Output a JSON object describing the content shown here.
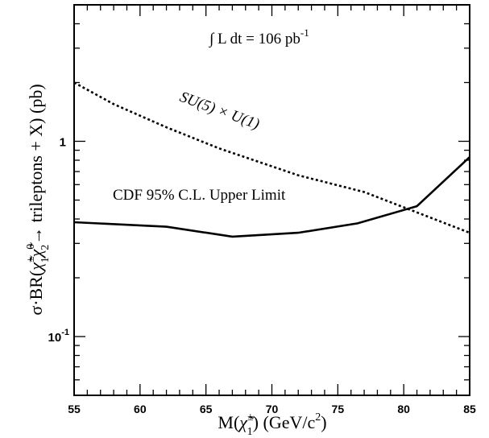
{
  "chart_data": {
    "type": "line",
    "xlim": [
      55,
      85
    ],
    "ylim": [
      0.05,
      5
    ],
    "yscale": "log",
    "grid": false,
    "x_ticks": [
      55,
      60,
      65,
      70,
      75,
      80,
      85
    ],
    "x_tick_labels": [
      "55",
      "60",
      "65",
      "70",
      "75",
      "80",
      "85"
    ],
    "y_ticks": [
      {
        "value": 1,
        "label": "1"
      },
      {
        "value": 0.1,
        "label": "10",
        "sup": "-1"
      }
    ],
    "series": [
      {
        "name": "CDF 95% C.L. Upper Limit",
        "style": "solid",
        "color": "#000000",
        "x": [
          55,
          62,
          67,
          72,
          76.5,
          81,
          85
        ],
        "y": [
          0.385,
          0.365,
          0.325,
          0.34,
          0.38,
          0.465,
          0.83
        ]
      },
      {
        "name": "SU(5) × U(1)",
        "style": "dotted",
        "color": "#000000",
        "x": [
          55,
          58,
          62,
          66,
          72,
          77,
          85
        ],
        "y": [
          2.0,
          1.55,
          1.18,
          0.92,
          0.67,
          0.55,
          0.34
        ]
      }
    ],
    "annotations": {
      "luminosity": {
        "prefix": "∫",
        "text": "L dt = 106 pb",
        "sup": "-1"
      },
      "limit_label": "CDF 95% C.L. Upper Limit",
      "theory_label": "SU(5) × U(1)"
    }
  }
}
